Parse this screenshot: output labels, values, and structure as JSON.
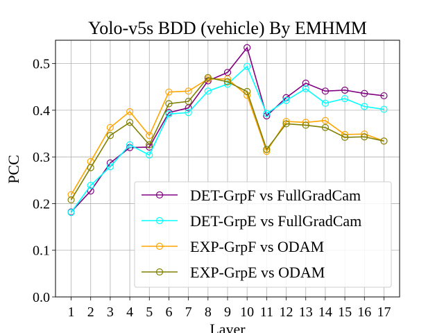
{
  "chart_data": {
    "type": "line",
    "title": "Yolo-v5s BDD (vehicle) By EMHMM",
    "xlabel": "Layer",
    "ylabel": "PCC",
    "categories": [
      1,
      2,
      3,
      4,
      5,
      6,
      7,
      8,
      9,
      10,
      11,
      12,
      13,
      14,
      15,
      16,
      17
    ],
    "xlim": [
      0.2,
      17.8
    ],
    "ylim": [
      0.0,
      0.55
    ],
    "yticks": [
      0.0,
      0.1,
      0.2,
      0.3,
      0.4,
      0.5
    ],
    "ytick_labels": [
      "0.0",
      "0.1",
      "0.2",
      "0.3",
      "0.4",
      "0.5"
    ],
    "xtick_labels": [
      "1",
      "2",
      "3",
      "4",
      "5",
      "6",
      "7",
      "8",
      "9",
      "10",
      "11",
      "12",
      "13",
      "14",
      "15",
      "16",
      "17"
    ],
    "grid": true,
    "legend_position": "lower-right",
    "marker": "open-circle",
    "series": [
      {
        "name": "DET-GrpF vs FullGradCam",
        "color": "#800080",
        "values": [
          0.182,
          0.227,
          0.287,
          0.32,
          0.321,
          0.395,
          0.405,
          0.463,
          0.481,
          0.534,
          0.388,
          0.427,
          0.458,
          0.441,
          0.443,
          0.436,
          0.431
        ]
      },
      {
        "name": "DET-GrpE vs FullGradCam",
        "color": "#00ffff",
        "values": [
          0.181,
          0.239,
          0.279,
          0.326,
          0.304,
          0.392,
          0.395,
          0.441,
          0.456,
          0.494,
          0.393,
          0.421,
          0.446,
          0.415,
          0.425,
          0.408,
          0.402
        ]
      },
      {
        "name": "EXP-GrpF vs ODAM",
        "color": "#ffa500",
        "values": [
          0.219,
          0.29,
          0.363,
          0.397,
          0.346,
          0.439,
          0.441,
          0.467,
          0.467,
          0.432,
          0.312,
          0.376,
          0.374,
          0.378,
          0.348,
          0.349,
          0.334
        ]
      },
      {
        "name": "EXP-GrpE vs ODAM",
        "color": "#808000",
        "values": [
          0.208,
          0.277,
          0.346,
          0.374,
          0.326,
          0.414,
          0.419,
          0.47,
          0.461,
          0.44,
          0.316,
          0.371,
          0.368,
          0.363,
          0.342,
          0.343,
          0.334
        ]
      }
    ]
  }
}
